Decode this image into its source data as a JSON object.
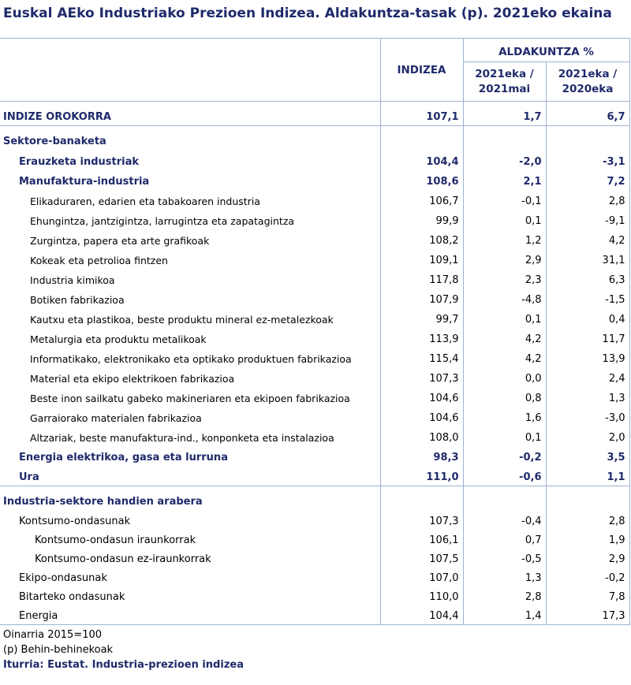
{
  "title": "Euskal AEko Industriako Prezioen Indizea. Aldakuntza-tasak (p). 2021eko ekaina",
  "headers": {
    "indizea": "INDIZEA",
    "aldakuntza": "ALDAKUNTZA %",
    "col1": "2021eka / 2021mai",
    "col2": "2021eka / 2020eka"
  },
  "orokorra": {
    "label": "INDIZE OROKORRA",
    "v1": "107,1",
    "v2": "1,7",
    "v3": "6,7"
  },
  "section1": "Sektore-banaketa",
  "rows1": [
    {
      "label": "Erauzketa industriak",
      "v1": "104,4",
      "v2": "-2,0",
      "v3": "-3,1",
      "level": 1,
      "bold": true
    },
    {
      "label": "Manufaktura-industria",
      "v1": "108,6",
      "v2": "2,1",
      "v3": "7,2",
      "level": 1,
      "bold": true
    },
    {
      "label": "Elikaduraren, edarien eta tabakoaren industria",
      "v1": "106,7",
      "v2": "-0,1",
      "v3": "2,8",
      "level": 2,
      "bold": false
    },
    {
      "label": "Ehungintza, jantzigintza, larrugintza eta zapatagintza",
      "v1": "99,9",
      "v2": "0,1",
      "v3": "-9,1",
      "level": 2,
      "bold": false
    },
    {
      "label": "Zurgintza, papera eta arte grafikoak",
      "v1": "108,2",
      "v2": "1,2",
      "v3": "4,2",
      "level": 2,
      "bold": false
    },
    {
      "label": "Kokeak eta petrolioa fintzen",
      "v1": "109,1",
      "v2": "2,9",
      "v3": "31,1",
      "level": 2,
      "bold": false
    },
    {
      "label": "Industria kimikoa",
      "v1": "117,8",
      "v2": "2,3",
      "v3": "6,3",
      "level": 2,
      "bold": false
    },
    {
      "label": "Botiken fabrikazioa",
      "v1": "107,9",
      "v2": "-4,8",
      "v3": "-1,5",
      "level": 2,
      "bold": false
    },
    {
      "label": "Kautxu eta plastikoa, beste produktu mineral ez-metalezkoak",
      "v1": "99,7",
      "v2": "0,1",
      "v3": "0,4",
      "level": 2,
      "bold": false
    },
    {
      "label": "Metalurgia eta produktu metalikoak",
      "v1": "113,9",
      "v2": "4,2",
      "v3": "11,7",
      "level": 2,
      "bold": false
    },
    {
      "label": "Informatikako, elektronikako eta optikako produktuen fabrikazioa",
      "v1": "115,4",
      "v2": "4,2",
      "v3": "13,9",
      "level": 2,
      "bold": false
    },
    {
      "label": "Material eta ekipo elektrikoen fabrikazioa",
      "v1": "107,3",
      "v2": "0,0",
      "v3": "2,4",
      "level": 2,
      "bold": false
    },
    {
      "label": "Beste inon sailkatu gabeko makineriaren eta ekipoen fabrikazioa",
      "v1": "104,6",
      "v2": "0,8",
      "v3": "1,3",
      "level": 2,
      "bold": false
    },
    {
      "label": "Garraiorako materialen fabrikazioa",
      "v1": "104,6",
      "v2": "1,6",
      "v3": "-3,0",
      "level": 2,
      "bold": false
    },
    {
      "label": "Altzariak, beste manufaktura-ind., konponketa eta instalazioa",
      "v1": "108,0",
      "v2": "0,1",
      "v3": "2,0",
      "level": 2,
      "bold": false
    },
    {
      "label": "Energia elektrikoa, gasa eta lurruna",
      "v1": "98,3",
      "v2": "-0,2",
      "v3": "3,5",
      "level": 1,
      "bold": true
    },
    {
      "label": "Ura",
      "v1": "111,0",
      "v2": "-0,6",
      "v3": "1,1",
      "level": 1,
      "bold": true
    }
  ],
  "section2": "Industria-sektore handien arabera",
  "rows2": [
    {
      "label": "Kontsumo-ondasunak",
      "v1": "107,3",
      "v2": "-0,4",
      "v3": "2,8",
      "level": 1
    },
    {
      "label": "Kontsumo-ondasun iraunkorrak",
      "v1": "106,1",
      "v2": "0,7",
      "v3": "1,9",
      "level": 3
    },
    {
      "label": "Kontsumo-ondasun ez-iraunkorrak",
      "v1": "107,5",
      "v2": "-0,5",
      "v3": "2,9",
      "level": 3
    },
    {
      "label": "Ekipo-ondasunak",
      "v1": "107,0",
      "v2": "1,3",
      "v3": "-0,2",
      "level": 1
    },
    {
      "label": "Bitarteko ondasunak",
      "v1": "110,0",
      "v2": "2,8",
      "v3": "7,8",
      "level": 1
    },
    {
      "label": "Energia",
      "v1": "104,4",
      "v2": "1,4",
      "v3": "17,3",
      "level": 1
    }
  ],
  "notes": {
    "base": "Oinarria 2015=100",
    "provisional": "(p) Behin-behinekoak",
    "source": "Iturria: Eustat. Industria-prezioen indizea"
  }
}
